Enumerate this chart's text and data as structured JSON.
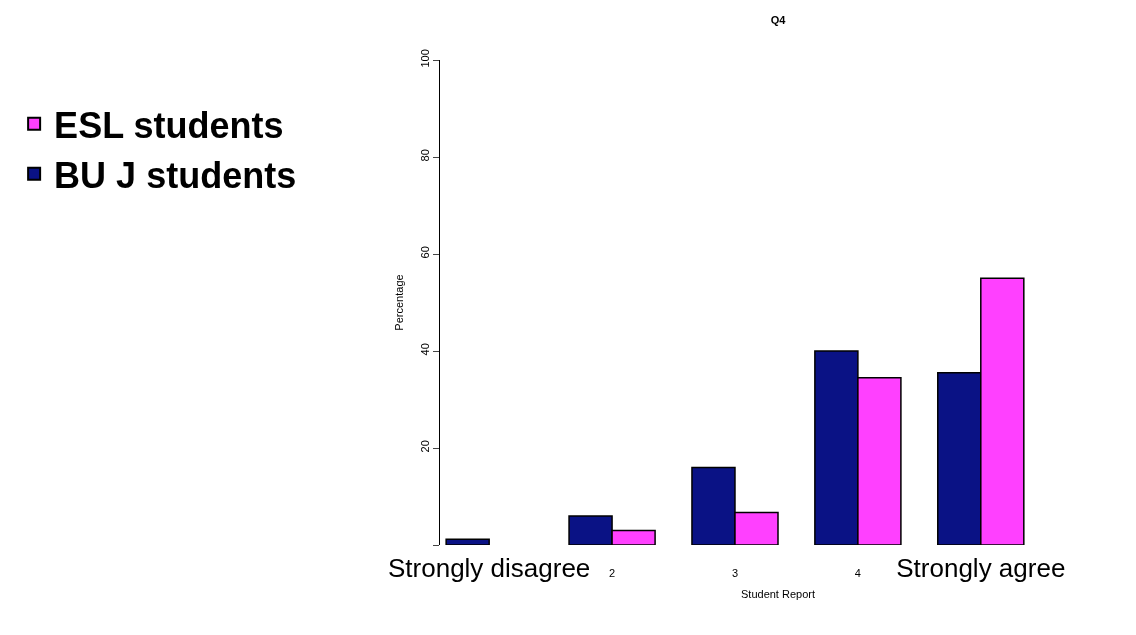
{
  "chart_data": {
    "type": "bar",
    "title": "Q4",
    "xlabel": "Student Report",
    "ylabel": "Percentage",
    "categories": [
      "Strongly disagree",
      "2",
      "3",
      "4",
      "Strongly agree"
    ],
    "series": [
      {
        "name": "BU J students",
        "color": "#0a1285",
        "values": [
          1.2,
          6,
          16,
          40,
          35.5
        ]
      },
      {
        "name": "ESL students",
        "color": "#ff40ff",
        "values": [
          null,
          3,
          6.7,
          34.5,
          55
        ]
      }
    ],
    "ylim": [
      0,
      100
    ],
    "yticks": [
      {
        "value": 0,
        "label": null
      },
      20,
      40,
      60,
      80,
      100
    ],
    "grid": false,
    "legend": "left"
  }
}
